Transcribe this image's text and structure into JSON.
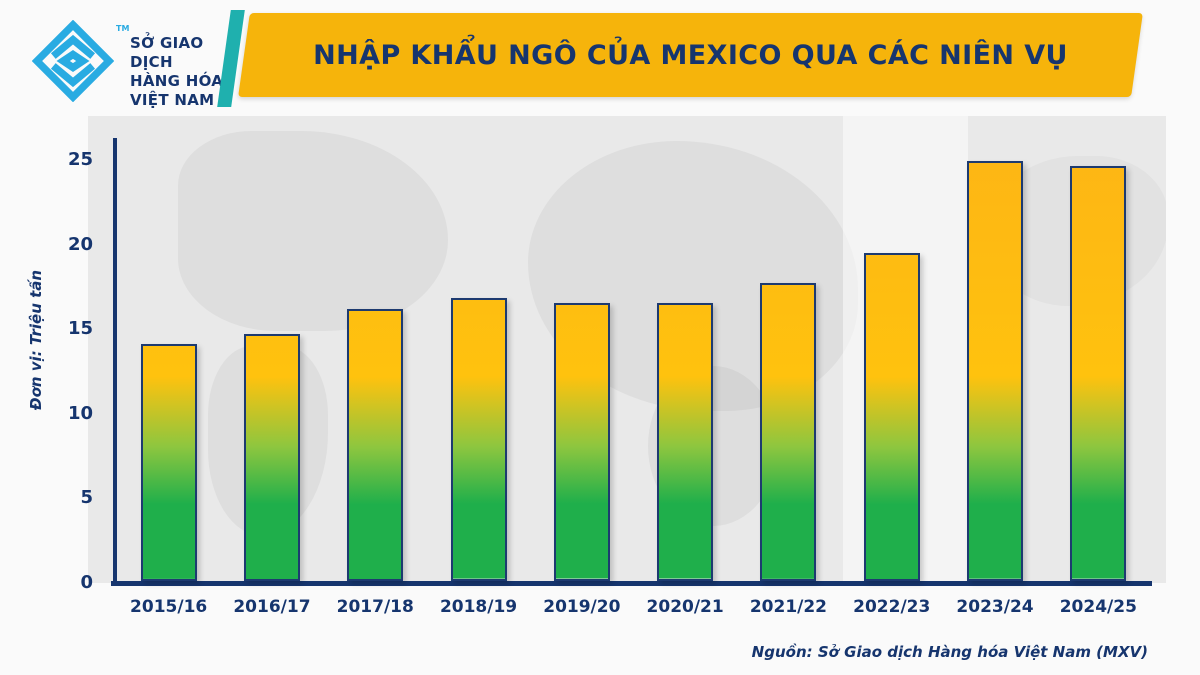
{
  "header": {
    "logo": {
      "lines": [
        "SỞ GIAO DỊCH",
        "HÀNG HÓA",
        "VIỆT NAM"
      ],
      "tm": "TM",
      "brand_color": "#29ABE2"
    },
    "banner": {
      "bg_color": "#F6B40B",
      "accent_color": "#1FB0AE",
      "text_color": "#16356E"
    }
  },
  "chart_data": {
    "type": "bar",
    "title": "NHẬP KHẨU NGÔ CỦA MEXICO QUA CÁC NIÊN VỤ",
    "categories": [
      "2015/16",
      "2016/17",
      "2017/18",
      "2018/19",
      "2019/20",
      "2020/21",
      "2021/22",
      "2022/23",
      "2023/24",
      "2024/25"
    ],
    "values": [
      14.0,
      14.6,
      16.1,
      16.7,
      16.4,
      16.4,
      17.6,
      19.4,
      24.8,
      24.5
    ],
    "xlabel": "",
    "ylabel": "Đơn vị: Triệu tấn",
    "y_ticks": [
      0,
      5,
      10,
      15,
      20,
      25
    ],
    "ylim": [
      0,
      26
    ],
    "grid": false,
    "legend": null,
    "bar_gradient_bottom_to_top": [
      "#1FAF4B",
      "#8DC63F",
      "#FFC20E",
      "#FDB515"
    ],
    "bar_border_color": "#1d3a70",
    "axis_color": "#16356E"
  },
  "footer": {
    "source": "Nguồn: Sở Giao dịch Hàng hóa Việt Nam (MXV)"
  }
}
